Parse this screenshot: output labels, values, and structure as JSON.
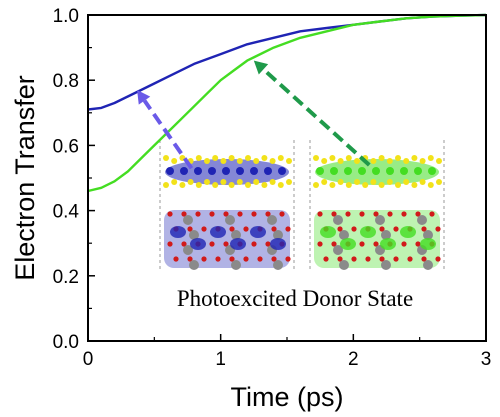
{
  "chart_data": {
    "type": "line",
    "title": "",
    "xlabel": "Time (ps)",
    "ylabel": "Electron Transfer",
    "xlim": [
      0,
      3
    ],
    "ylim": [
      0.0,
      1.0
    ],
    "xticks": [
      "0",
      "1",
      "2",
      "3"
    ],
    "yticks": [
      "0.0",
      "0.2",
      "0.4",
      "0.6",
      "0.8",
      "1.0"
    ],
    "grid": false,
    "legend": "none",
    "series": [
      {
        "color": "#1f24b4",
        "x": [
          0,
          0.1,
          0.2,
          0.3,
          0.4,
          0.5,
          0.6,
          0.8,
          1.0,
          1.2,
          1.4,
          1.6,
          1.8,
          2.0,
          2.2,
          2.4,
          2.6,
          2.8,
          3.0
        ],
        "y": [
          0.71,
          0.715,
          0.73,
          0.75,
          0.77,
          0.79,
          0.81,
          0.85,
          0.88,
          0.91,
          0.93,
          0.95,
          0.96,
          0.97,
          0.98,
          0.99,
          0.995,
          0.998,
          1.0
        ]
      },
      {
        "color": "#44dd22",
        "x": [
          0,
          0.1,
          0.2,
          0.3,
          0.4,
          0.5,
          0.6,
          0.7,
          0.8,
          0.9,
          1.0,
          1.1,
          1.2,
          1.4,
          1.6,
          1.8,
          2.0,
          2.2,
          2.4,
          2.6,
          2.8,
          3.0
        ],
        "y": [
          0.46,
          0.47,
          0.49,
          0.52,
          0.56,
          0.6,
          0.64,
          0.68,
          0.72,
          0.76,
          0.8,
          0.83,
          0.86,
          0.9,
          0.93,
          0.95,
          0.97,
          0.98,
          0.99,
          0.995,
          0.998,
          1.0
        ]
      }
    ],
    "annotations": [
      {
        "text": "Photoexcited Donor State"
      }
    ],
    "arrows": [
      {
        "color": "#6a5ae8",
        "from": [
          0.78,
          0.53
        ],
        "to": [
          0.37,
          0.77
        ]
      },
      {
        "color": "#1f9a4a",
        "from": [
          2.12,
          0.54
        ],
        "to": [
          1.25,
          0.86
        ]
      }
    ],
    "inset": {
      "panels": [
        {
          "accent": "#1f24b4"
        },
        {
          "accent": "#44dd22"
        }
      ]
    }
  }
}
